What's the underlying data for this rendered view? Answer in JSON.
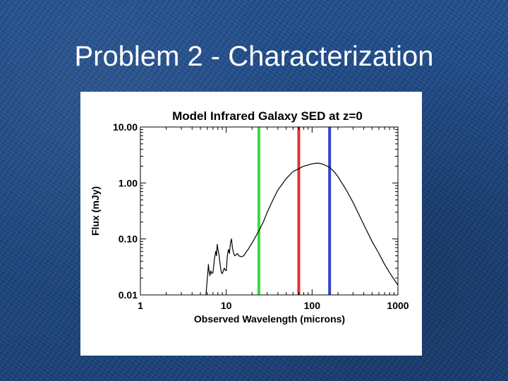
{
  "slide": {
    "title": "Problem 2 - Characterization"
  },
  "colors": {
    "background": "#1d4a86",
    "title_text": "#ffffff",
    "green_band": "#33dd44",
    "red_band": "#dd3333",
    "blue_band": "#3344cc",
    "curve": "#000000"
  },
  "chart_data": {
    "type": "line",
    "title": "Model Infrared Galaxy SED at z=0",
    "xlabel": "Observed Wavelength (microns)",
    "ylabel": "Flux (mJy)",
    "xscale": "log",
    "yscale": "log",
    "xlim": [
      1,
      1000
    ],
    "ylim": [
      0.01,
      10
    ],
    "xticks": [
      1,
      10,
      100,
      1000
    ],
    "xtick_labels": [
      "1",
      "10",
      "100",
      "1000"
    ],
    "yticks": [
      0.01,
      0.1,
      1,
      10
    ],
    "ytick_labels": [
      "0.01",
      "0.10",
      "1.00",
      "10.00"
    ],
    "grid": false,
    "vertical_lines": [
      {
        "x": 24,
        "color": "#33dd44"
      },
      {
        "x": 70,
        "color": "#dd3333"
      },
      {
        "x": 160,
        "color": "#3344cc"
      }
    ],
    "series": [
      {
        "x": [
          5.8,
          6.1,
          6.2,
          6.3,
          6.45,
          6.6,
          6.8,
          7.0,
          7.3,
          7.55,
          7.7,
          7.85,
          8.0,
          8.2,
          8.4,
          8.6,
          8.8,
          9.0,
          9.3,
          9.5,
          9.7,
          10.0,
          10.3,
          10.6,
          10.9,
          11.2,
          11.5,
          11.8,
          12.2,
          12.6,
          13.0,
          13.5,
          14.0,
          15.0,
          16.0,
          17.0,
          18.0,
          19.0,
          20.0,
          22.0,
          24.0,
          27.0,
          30.0,
          35.0,
          40.0,
          50.0,
          60.0,
          70.0,
          80.0,
          90.0,
          100.0,
          110.0,
          120.0,
          130.0,
          140.0,
          160.0,
          180.0,
          200.0,
          250.0,
          300.0,
          400.0,
          500.0,
          600.0,
          700.0,
          800.0,
          900.0,
          1000.0
        ],
        "y": [
          0.01,
          0.025,
          0.035,
          0.027,
          0.022,
          0.027,
          0.024,
          0.025,
          0.045,
          0.06,
          0.05,
          0.08,
          0.065,
          0.055,
          0.04,
          0.03,
          0.025,
          0.024,
          0.028,
          0.03,
          0.028,
          0.027,
          0.05,
          0.065,
          0.055,
          0.085,
          0.1,
          0.07,
          0.055,
          0.05,
          0.052,
          0.055,
          0.05,
          0.048,
          0.05,
          0.058,
          0.065,
          0.075,
          0.085,
          0.11,
          0.14,
          0.2,
          0.3,
          0.5,
          0.75,
          1.2,
          1.6,
          1.8,
          2.0,
          2.1,
          2.2,
          2.25,
          2.25,
          2.2,
          2.1,
          1.9,
          1.6,
          1.3,
          0.75,
          0.45,
          0.18,
          0.09,
          0.055,
          0.035,
          0.025,
          0.019,
          0.015
        ]
      }
    ]
  }
}
